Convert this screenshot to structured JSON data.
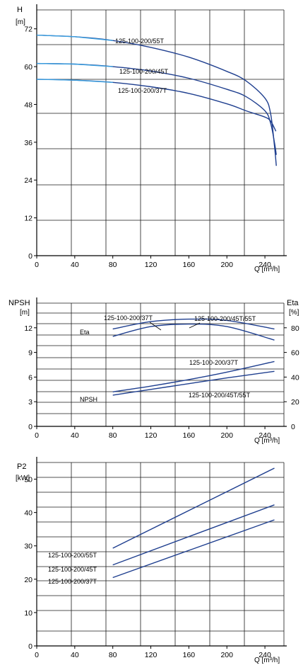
{
  "chart_data": [
    {
      "type": "line",
      "ylabel": "H",
      "yunit": "[m]",
      "xlabel": "Q [m³/h]",
      "xlim": [
        0,
        260
      ],
      "ylim": [
        0,
        78
      ],
      "x_ticks": [
        0,
        40,
        80,
        120,
        160,
        200,
        240
      ],
      "x_tick_labels": [
        "0",
        "40",
        "80",
        "120",
        "160",
        "200",
        "240"
      ],
      "y_ticks": [
        0,
        12,
        24,
        36,
        48,
        60,
        72
      ],
      "y_tick_labels": [
        "0",
        "12",
        "24",
        "36",
        "48",
        "60",
        "72"
      ],
      "grid": true,
      "colors": {
        "line": "#1f3f8f",
        "line_light": "#3a9fe0"
      },
      "series": [
        {
          "name": "125-100-200/55T",
          "x": [
            0,
            40,
            80,
            120,
            160,
            200,
            220,
            240,
            246,
            250,
            252
          ],
          "y": [
            70,
            69.5,
            68.3,
            66.1,
            63,
            58.5,
            55.5,
            50,
            45,
            35,
            28.5
          ]
        },
        {
          "name": "125-100-200/45T",
          "x": [
            0,
            40,
            80,
            120,
            160,
            200,
            220,
            240,
            246,
            250,
            252
          ],
          "y": [
            61,
            60.8,
            60,
            58.6,
            56.3,
            52.8,
            50.5,
            46,
            42,
            36,
            32
          ]
        },
        {
          "name": "125-100-200/37T",
          "x": [
            0,
            40,
            80,
            120,
            160,
            200,
            220,
            240,
            246,
            250,
            251.5
          ],
          "y": [
            56,
            55.7,
            55,
            53.6,
            51.5,
            48.2,
            46,
            44,
            42.7,
            40.5,
            39.5
          ]
        }
      ],
      "annotations": [
        "125-100-200/55T",
        "125-100-200/45T",
        "125-100-200/37T"
      ]
    },
    {
      "type": "line",
      "ylabel": "NPSH",
      "yunit": "[m]",
      "y2label": "Eta",
      "y2unit": "[%]",
      "xlabel": "Q [m³/h]",
      "xlim": [
        0,
        260
      ],
      "ylim": [
        0,
        15
      ],
      "y2lim": [
        0,
        100
      ],
      "x_ticks": [
        0,
        40,
        80,
        120,
        160,
        200,
        240
      ],
      "x_tick_labels": [
        "0",
        "40",
        "80",
        "120",
        "160",
        "200",
        "240"
      ],
      "y_ticks": [
        0,
        3,
        6,
        9,
        12
      ],
      "y_tick_labels": [
        "0",
        "3",
        "6",
        "9",
        "12"
      ],
      "y2_ticks": [
        0,
        20,
        40,
        60,
        80
      ],
      "y2_tick_labels": [
        "0",
        "20",
        "40",
        "60",
        "80"
      ],
      "grid": true,
      "series_labels": [
        "Eta",
        "NPSH"
      ],
      "series": [
        {
          "name": "125-100-200/37T",
          "group": "Eta",
          "axis": "right",
          "x": [
            80,
            120,
            160,
            200,
            250
          ],
          "y": [
            79,
            85,
            87,
            86,
            79
          ]
        },
        {
          "name": "125-100-200/45T/55T",
          "group": "Eta",
          "axis": "right",
          "x": [
            80,
            120,
            160,
            200,
            250
          ],
          "y": [
            73,
            81,
            83,
            81,
            70
          ]
        },
        {
          "name": "125-100-200/37T",
          "group": "NPSH",
          "axis": "left",
          "x": [
            80,
            120,
            160,
            200,
            250
          ],
          "y": [
            4.2,
            4.9,
            5.7,
            6.6,
            7.9
          ]
        },
        {
          "name": "125-100-200/45T/55T",
          "group": "NPSH",
          "axis": "left",
          "x": [
            80,
            120,
            160,
            200,
            250
          ],
          "y": [
            3.8,
            4.5,
            5.2,
            5.9,
            6.7
          ]
        }
      ],
      "annotations": [
        "125-100-200/37T",
        "125-100-200/45T/55T",
        "125-100-200/37T",
        "125-100-200/45T/55T"
      ]
    },
    {
      "type": "line",
      "ylabel": "P2",
      "yunit": "[kW]",
      "xlabel": "Q [m³/h]",
      "xlim": [
        0,
        260
      ],
      "ylim": [
        0,
        55
      ],
      "x_ticks": [
        0,
        40,
        80,
        120,
        160,
        200,
        240
      ],
      "x_tick_labels": [
        "0",
        "40",
        "80",
        "120",
        "160",
        "200",
        "240"
      ],
      "y_ticks": [
        0,
        10,
        20,
        30,
        40,
        50
      ],
      "y_tick_labels": [
        "0",
        "10",
        "20",
        "30",
        "40",
        "50"
      ],
      "grid": true,
      "series": [
        {
          "name": "125-100-200/55T",
          "x": [
            80,
            250
          ],
          "y": [
            29.3,
            53.3
          ]
        },
        {
          "name": "125-100-200/45T",
          "x": [
            80,
            250
          ],
          "y": [
            24.3,
            42.3
          ]
        },
        {
          "name": "125-100-200/37T",
          "x": [
            80,
            250
          ],
          "y": [
            20.5,
            37.8
          ]
        }
      ],
      "annotations": [
        "125-100-200/55T",
        "125-100-200/45T",
        "125-100-200/37T"
      ]
    }
  ]
}
